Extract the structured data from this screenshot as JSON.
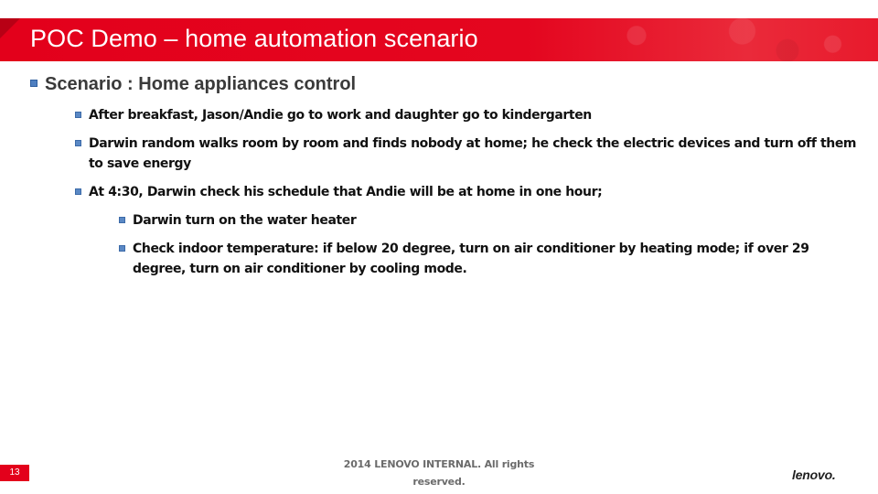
{
  "slide": {
    "title": "POC Demo – home automation scenario",
    "heading": "Scenario : Home appliances  control",
    "bullets": [
      "After breakfast, Jason/Andie go to work and daughter go to kindergarten",
      "Darwin random walks room by room and finds nobody at home; he check  the electric devices and turn off them to save energy",
      "At 4:30, Darwin check  his schedule that Andie will be at home in one hour;"
    ],
    "sub_bullets": [
      "Darwin turn on the water heater",
      "Check indoor temperature: if below 20 degree, turn on air conditioner by heating mode; if over 29 degree, turn on air conditioner by cooling mode."
    ],
    "page_number": "13",
    "footer_line1": "2014 LENOVO INTERNAL. All rights",
    "footer_line2": "reserved.",
    "logo": "lenovo."
  }
}
